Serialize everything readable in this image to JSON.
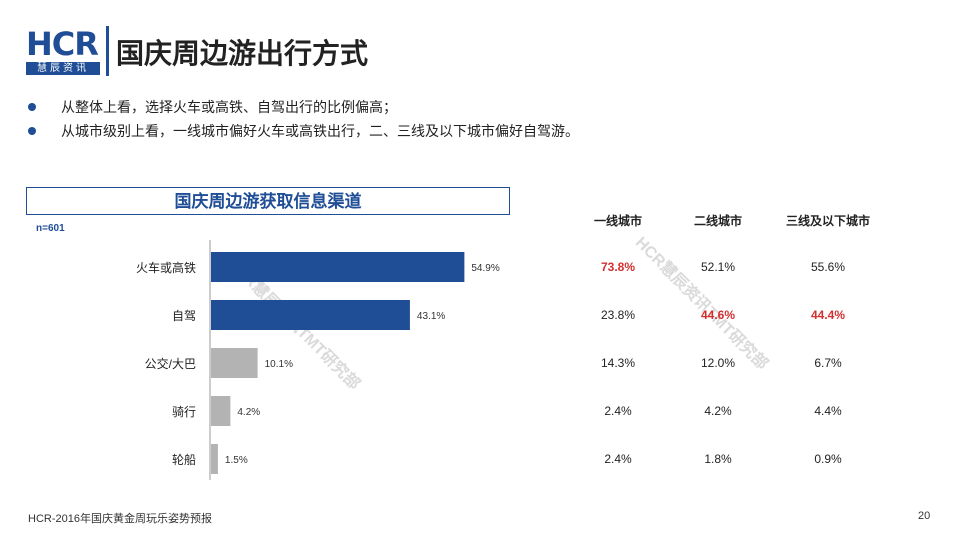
{
  "logo": {
    "text": "HCR",
    "sub": "慧辰资讯"
  },
  "page_title": "国庆周边游出行方式",
  "bullets": [
    "从整体上看，选择火车或高铁、自驾出行的比例偏高；",
    "从城市级别上看，一线城市偏好火车或高铁出行，二、三线及以下城市偏好自驾游。"
  ],
  "chart_data": {
    "type": "bar",
    "orientation": "horizontal",
    "title": "国庆周边游获取信息渠道",
    "sample_note": "n=601",
    "categories": [
      "火车或高铁",
      "自驾",
      "公交/大巴",
      "骑行",
      "轮船"
    ],
    "values": [
      54.9,
      43.1,
      10.1,
      4.2,
      1.5
    ],
    "value_labels": [
      "54.9%",
      "43.1%",
      "10.1%",
      "4.2%",
      "1.5%"
    ],
    "bar_colors": [
      "#1f4e96",
      "#1f4e96",
      "#b3b3b3",
      "#b3b3b3",
      "#b3b3b3"
    ],
    "xlim": [
      0,
      65
    ]
  },
  "city_table": {
    "headers": [
      "一线城市",
      "二线城市",
      "三线及以下城市"
    ],
    "rows": [
      [
        "73.8%",
        "52.1%",
        "55.6%"
      ],
      [
        "23.8%",
        "44.6%",
        "44.4%"
      ],
      [
        "14.3%",
        "12.0%",
        "6.7%"
      ],
      [
        "2.4%",
        "4.2%",
        "4.4%"
      ],
      [
        "2.4%",
        "1.8%",
        "0.9%"
      ]
    ],
    "highlight_color": "#d32f2f",
    "highlighted": [
      [
        0,
        0
      ],
      [
        1,
        1
      ],
      [
        1,
        2
      ]
    ]
  },
  "watermark": "HCR慧辰资讯TMT研究部",
  "footer": "HCR-2016年国庆黄金周玩乐姿势预报",
  "page_number": "20",
  "colors": {
    "brand": "#1f4e96",
    "grey_bar": "#b3b3b3",
    "highlight": "#d32f2f"
  }
}
